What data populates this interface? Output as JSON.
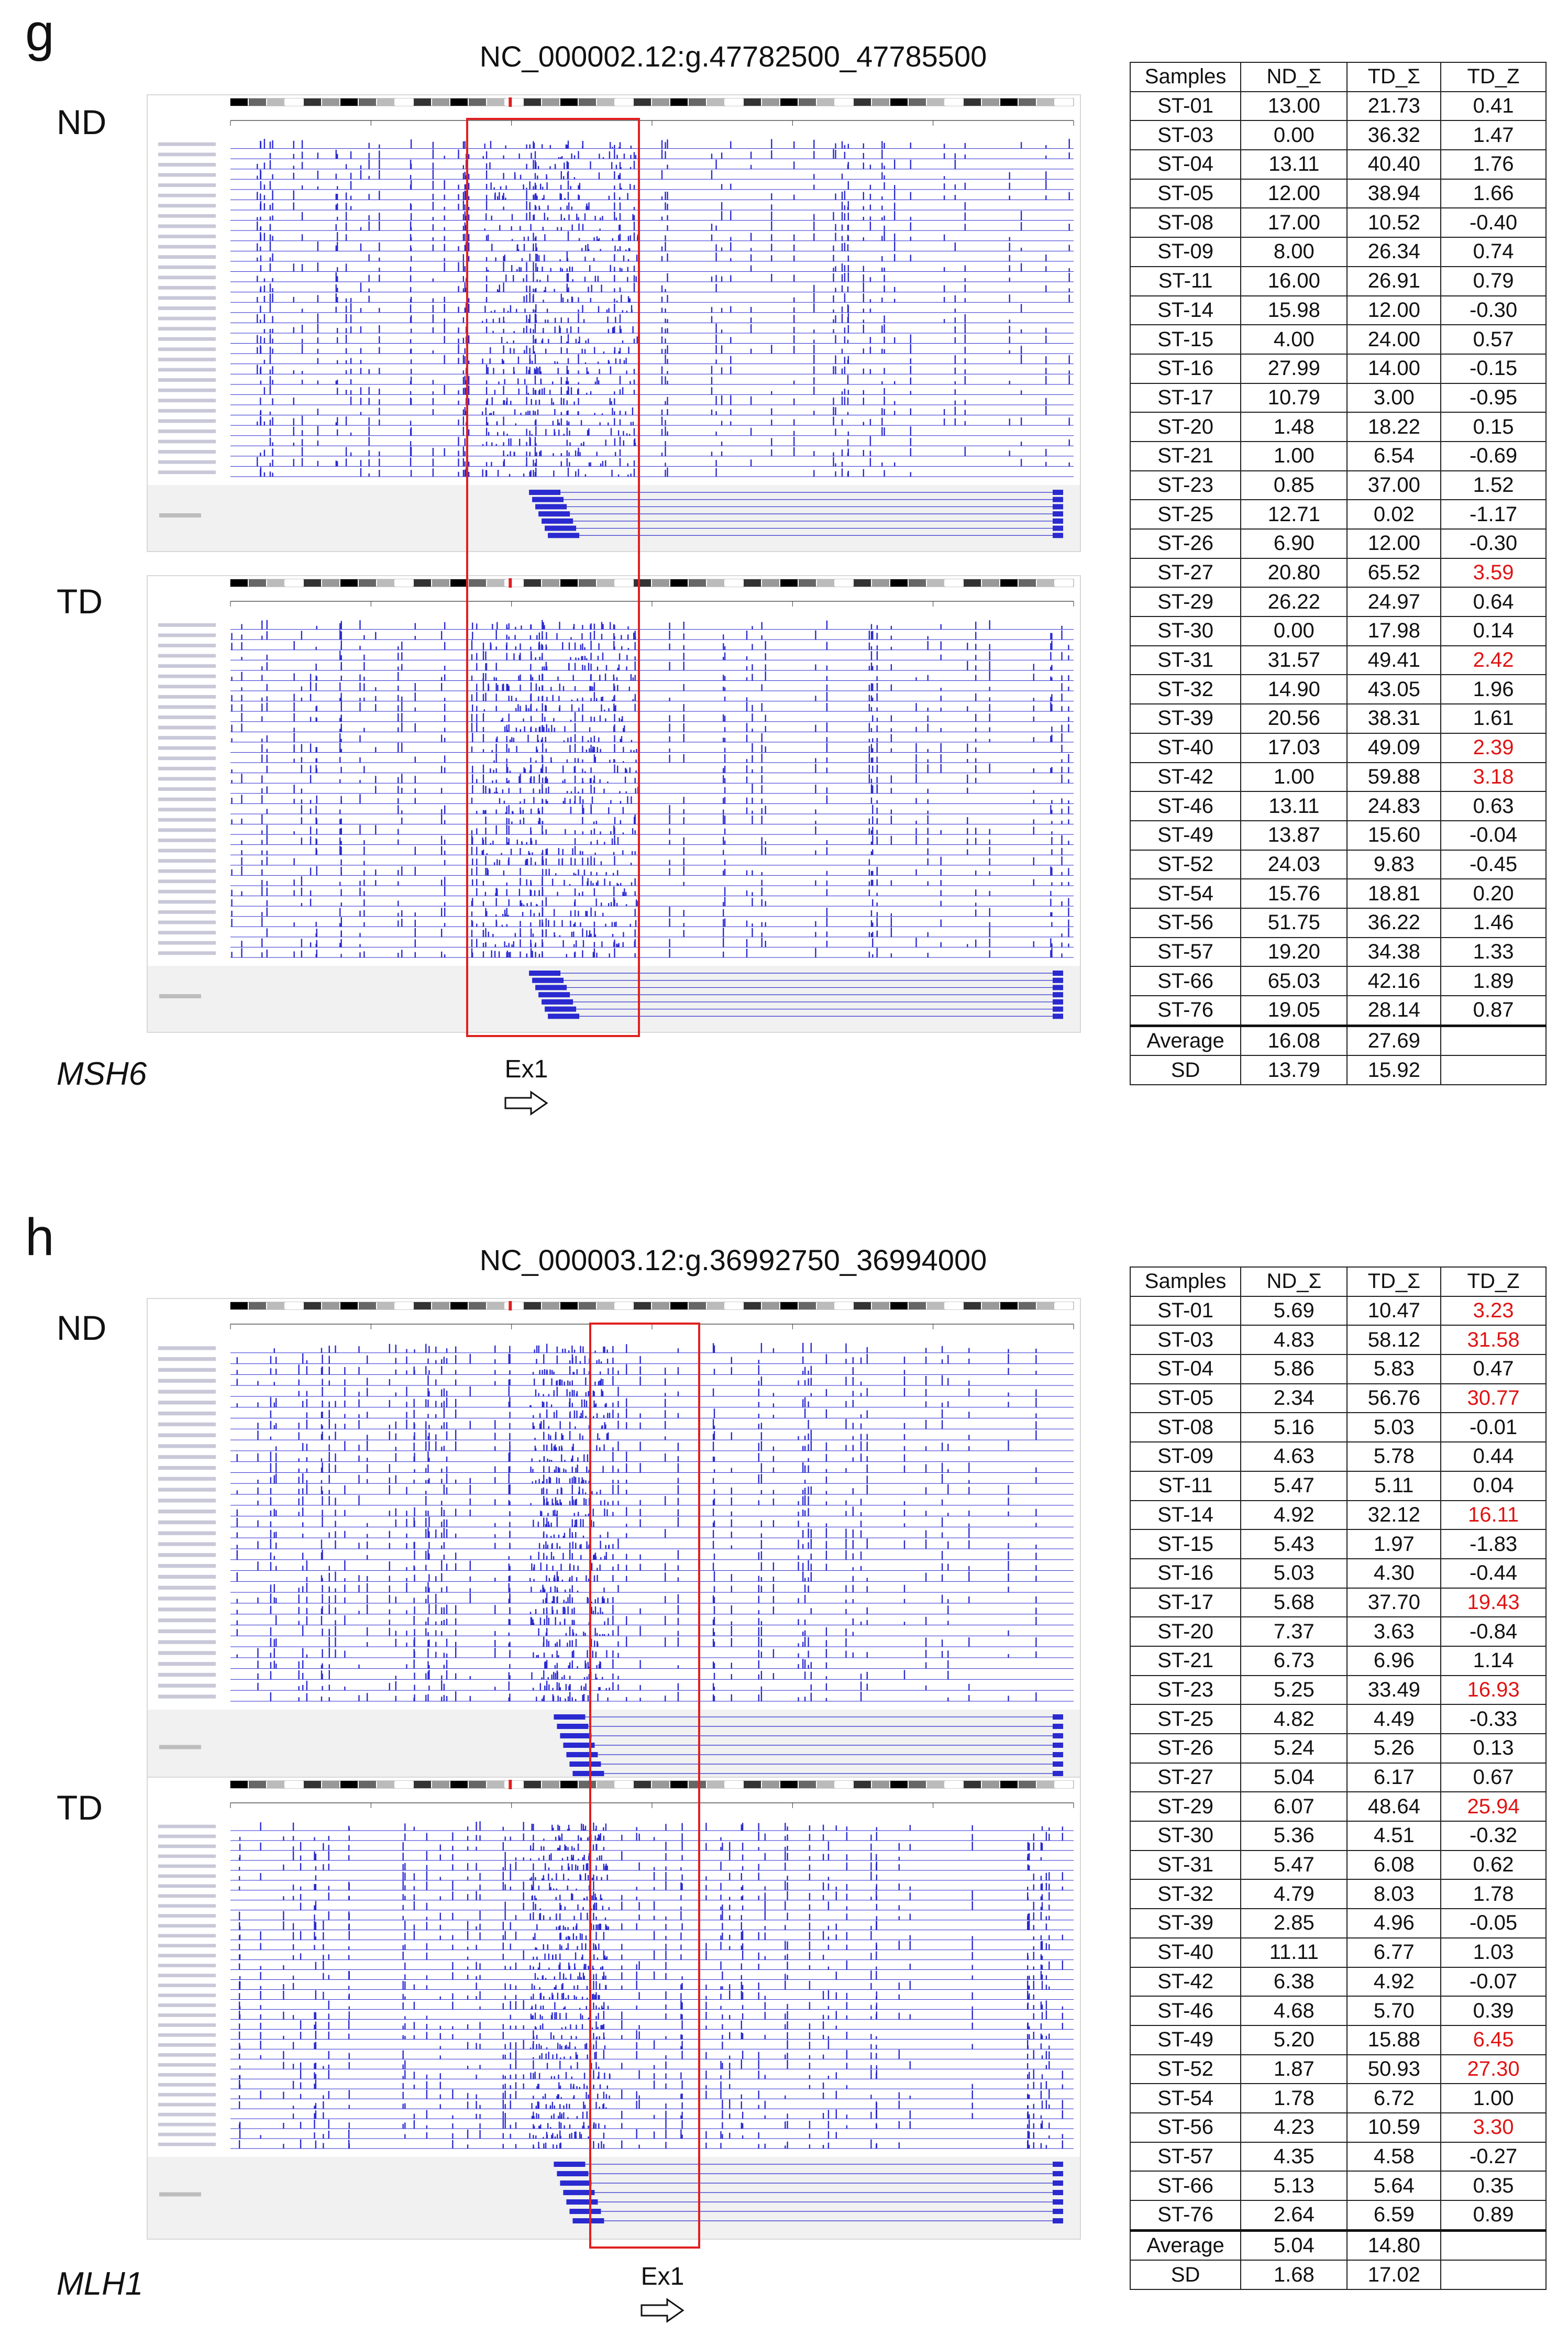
{
  "panels": [
    {
      "letter": "g",
      "locus": "NC_000002.12:g.47782500_47785500",
      "gene": "MSH6",
      "exon_label": "Ex1",
      "track_labels": [
        "ND",
        "TD"
      ],
      "table": {
        "headers": [
          "Samples",
          "ND_Σ",
          "TD_Σ",
          "TD_Z"
        ],
        "rows": [
          {
            "sample": "ST-01",
            "nd": "13.00",
            "td": "21.73",
            "z": "0.41",
            "hi": false
          },
          {
            "sample": "ST-03",
            "nd": "0.00",
            "td": "36.32",
            "z": "1.47",
            "hi": false
          },
          {
            "sample": "ST-04",
            "nd": "13.11",
            "td": "40.40",
            "z": "1.76",
            "hi": false
          },
          {
            "sample": "ST-05",
            "nd": "12.00",
            "td": "38.94",
            "z": "1.66",
            "hi": false
          },
          {
            "sample": "ST-08",
            "nd": "17.00",
            "td": "10.52",
            "z": "-0.40",
            "hi": false
          },
          {
            "sample": "ST-09",
            "nd": "8.00",
            "td": "26.34",
            "z": "0.74",
            "hi": false
          },
          {
            "sample": "ST-11",
            "nd": "16.00",
            "td": "26.91",
            "z": "0.79",
            "hi": false
          },
          {
            "sample": "ST-14",
            "nd": "15.98",
            "td": "12.00",
            "z": "-0.30",
            "hi": false
          },
          {
            "sample": "ST-15",
            "nd": "4.00",
            "td": "24.00",
            "z": "0.57",
            "hi": false
          },
          {
            "sample": "ST-16",
            "nd": "27.99",
            "td": "14.00",
            "z": "-0.15",
            "hi": false
          },
          {
            "sample": "ST-17",
            "nd": "10.79",
            "td": "3.00",
            "z": "-0.95",
            "hi": false
          },
          {
            "sample": "ST-20",
            "nd": "1.48",
            "td": "18.22",
            "z": "0.15",
            "hi": false
          },
          {
            "sample": "ST-21",
            "nd": "1.00",
            "td": "6.54",
            "z": "-0.69",
            "hi": false
          },
          {
            "sample": "ST-23",
            "nd": "0.85",
            "td": "37.00",
            "z": "1.52",
            "hi": false
          },
          {
            "sample": "ST-25",
            "nd": "12.71",
            "td": "0.02",
            "z": "-1.17",
            "hi": false
          },
          {
            "sample": "ST-26",
            "nd": "6.90",
            "td": "12.00",
            "z": "-0.30",
            "hi": false
          },
          {
            "sample": "ST-27",
            "nd": "20.80",
            "td": "65.52",
            "z": "3.59",
            "hi": true
          },
          {
            "sample": "ST-29",
            "nd": "26.22",
            "td": "24.97",
            "z": "0.64",
            "hi": false
          },
          {
            "sample": "ST-30",
            "nd": "0.00",
            "td": "17.98",
            "z": "0.14",
            "hi": false
          },
          {
            "sample": "ST-31",
            "nd": "31.57",
            "td": "49.41",
            "z": "2.42",
            "hi": true
          },
          {
            "sample": "ST-32",
            "nd": "14.90",
            "td": "43.05",
            "z": "1.96",
            "hi": false
          },
          {
            "sample": "ST-39",
            "nd": "20.56",
            "td": "38.31",
            "z": "1.61",
            "hi": false
          },
          {
            "sample": "ST-40",
            "nd": "17.03",
            "td": "49.09",
            "z": "2.39",
            "hi": true
          },
          {
            "sample": "ST-42",
            "nd": "1.00",
            "td": "59.88",
            "z": "3.18",
            "hi": true
          },
          {
            "sample": "ST-46",
            "nd": "13.11",
            "td": "24.83",
            "z": "0.63",
            "hi": false
          },
          {
            "sample": "ST-49",
            "nd": "13.87",
            "td": "15.60",
            "z": "-0.04",
            "hi": false
          },
          {
            "sample": "ST-52",
            "nd": "24.03",
            "td": "9.83",
            "z": "-0.45",
            "hi": false
          },
          {
            "sample": "ST-54",
            "nd": "15.76",
            "td": "18.81",
            "z": "0.20",
            "hi": false
          },
          {
            "sample": "ST-56",
            "nd": "51.75",
            "td": "36.22",
            "z": "1.46",
            "hi": false
          },
          {
            "sample": "ST-57",
            "nd": "19.20",
            "td": "34.38",
            "z": "1.33",
            "hi": false
          },
          {
            "sample": "ST-66",
            "nd": "65.03",
            "td": "42.16",
            "z": "1.89",
            "hi": false
          },
          {
            "sample": "ST-76",
            "nd": "19.05",
            "td": "28.14",
            "z": "0.87",
            "hi": false
          }
        ],
        "summary": [
          {
            "label": "Average",
            "nd": "16.08",
            "td": "27.69",
            "z": ""
          },
          {
            "label": "SD",
            "nd": "13.79",
            "td": "15.92",
            "z": ""
          }
        ]
      }
    },
    {
      "letter": "h",
      "locus": "NC_000003.12:g.36992750_36994000",
      "gene": "MLH1",
      "exon_label": "Ex1",
      "track_labels": [
        "ND",
        "TD"
      ],
      "table": {
        "headers": [
          "Samples",
          "ND_Σ",
          "TD_Σ",
          "TD_Z"
        ],
        "rows": [
          {
            "sample": "ST-01",
            "nd": "5.69",
            "td": "10.47",
            "z": "3.23",
            "hi": true
          },
          {
            "sample": "ST-03",
            "nd": "4.83",
            "td": "58.12",
            "z": "31.58",
            "hi": true
          },
          {
            "sample": "ST-04",
            "nd": "5.86",
            "td": "5.83",
            "z": "0.47",
            "hi": false
          },
          {
            "sample": "ST-05",
            "nd": "2.34",
            "td": "56.76",
            "z": "30.77",
            "hi": true
          },
          {
            "sample": "ST-08",
            "nd": "5.16",
            "td": "5.03",
            "z": "-0.01",
            "hi": false
          },
          {
            "sample": "ST-09",
            "nd": "4.63",
            "td": "5.78",
            "z": "0.44",
            "hi": false
          },
          {
            "sample": "ST-11",
            "nd": "5.47",
            "td": "5.11",
            "z": "0.04",
            "hi": false
          },
          {
            "sample": "ST-14",
            "nd": "4.92",
            "td": "32.12",
            "z": "16.11",
            "hi": true
          },
          {
            "sample": "ST-15",
            "nd": "5.43",
            "td": "1.97",
            "z": "-1.83",
            "hi": false
          },
          {
            "sample": "ST-16",
            "nd": "5.03",
            "td": "4.30",
            "z": "-0.44",
            "hi": false
          },
          {
            "sample": "ST-17",
            "nd": "5.68",
            "td": "37.70",
            "z": "19.43",
            "hi": true
          },
          {
            "sample": "ST-20",
            "nd": "7.37",
            "td": "3.63",
            "z": "-0.84",
            "hi": false
          },
          {
            "sample": "ST-21",
            "nd": "6.73",
            "td": "6.96",
            "z": "1.14",
            "hi": false
          },
          {
            "sample": "ST-23",
            "nd": "5.25",
            "td": "33.49",
            "z": "16.93",
            "hi": true
          },
          {
            "sample": "ST-25",
            "nd": "4.82",
            "td": "4.49",
            "z": "-0.33",
            "hi": false
          },
          {
            "sample": "ST-26",
            "nd": "5.24",
            "td": "5.26",
            "z": "0.13",
            "hi": false
          },
          {
            "sample": "ST-27",
            "nd": "5.04",
            "td": "6.17",
            "z": "0.67",
            "hi": false
          },
          {
            "sample": "ST-29",
            "nd": "6.07",
            "td": "48.64",
            "z": "25.94",
            "hi": true
          },
          {
            "sample": "ST-30",
            "nd": "5.36",
            "td": "4.51",
            "z": "-0.32",
            "hi": false
          },
          {
            "sample": "ST-31",
            "nd": "5.47",
            "td": "6.08",
            "z": "0.62",
            "hi": false
          },
          {
            "sample": "ST-32",
            "nd": "4.79",
            "td": "8.03",
            "z": "1.78",
            "hi": false
          },
          {
            "sample": "ST-39",
            "nd": "2.85",
            "td": "4.96",
            "z": "-0.05",
            "hi": false
          },
          {
            "sample": "ST-40",
            "nd": "11.11",
            "td": "6.77",
            "z": "1.03",
            "hi": false
          },
          {
            "sample": "ST-42",
            "nd": "6.38",
            "td": "4.92",
            "z": "-0.07",
            "hi": false
          },
          {
            "sample": "ST-46",
            "nd": "4.68",
            "td": "5.70",
            "z": "0.39",
            "hi": false
          },
          {
            "sample": "ST-49",
            "nd": "5.20",
            "td": "15.88",
            "z": "6.45",
            "hi": true
          },
          {
            "sample": "ST-52",
            "nd": "1.87",
            "td": "50.93",
            "z": "27.30",
            "hi": true
          },
          {
            "sample": "ST-54",
            "nd": "1.78",
            "td": "6.72",
            "z": "1.00",
            "hi": false
          },
          {
            "sample": "ST-56",
            "nd": "4.23",
            "td": "10.59",
            "z": "3.30",
            "hi": true
          },
          {
            "sample": "ST-57",
            "nd": "4.35",
            "td": "4.58",
            "z": "-0.27",
            "hi": false
          },
          {
            "sample": "ST-66",
            "nd": "5.13",
            "td": "5.64",
            "z": "0.35",
            "hi": false
          },
          {
            "sample": "ST-76",
            "nd": "2.64",
            "td": "6.59",
            "z": "0.89",
            "hi": false
          }
        ],
        "summary": [
          {
            "label": "Average",
            "nd": "5.04",
            "td": "14.80",
            "z": ""
          },
          {
            "label": "SD",
            "nd": "1.68",
            "td": "17.02",
            "z": ""
          }
        ]
      }
    }
  ],
  "colors": {
    "track": "#2a2ad0",
    "highlight_box": "#e02020",
    "highlight_text": "#e01414"
  }
}
